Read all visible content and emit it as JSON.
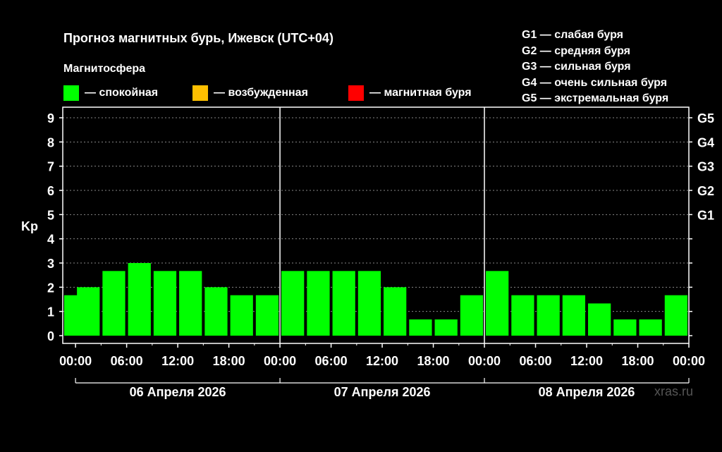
{
  "title": "Прогноз магнитных бурь, Ижевск (UTC+04)",
  "subtitle": "Магнитосфера",
  "legend": [
    {
      "label": "— спокойная",
      "color": "#00ff00"
    },
    {
      "label": "— возбужденная",
      "color": "#ffc000"
    },
    {
      "label": "— магнитная буря",
      "color": "#ff0000"
    }
  ],
  "g_legend": [
    "G1 — слабая буря",
    "G2 — средняя буря",
    "G3 — сильная буря",
    "G4 — очень сильная буря",
    "G5 — экстремальная буря"
  ],
  "watermark": "xras.ru",
  "chart_data": {
    "type": "bar",
    "title": "Прогноз магнитных бурь, Ижевск (UTC+04)",
    "ylabel": "Kp",
    "ylim": [
      0,
      9
    ],
    "yticks": [
      "0",
      "1",
      "2",
      "3",
      "4",
      "5",
      "6",
      "7",
      "8",
      "9"
    ],
    "right_ticks": [
      {
        "value": 5,
        "label": "G1"
      },
      {
        "value": 6,
        "label": "G2"
      },
      {
        "value": 7,
        "label": "G3"
      },
      {
        "value": 8,
        "label": "G4"
      },
      {
        "value": 9,
        "label": "G5"
      }
    ],
    "xlim_hours": [
      -1.5,
      72
    ],
    "xtick_labels": [
      "00:00",
      "06:00",
      "12:00",
      "18:00",
      "00:00",
      "06:00",
      "12:00",
      "18:00",
      "00:00",
      "06:00",
      "12:00",
      "18:00",
      "00:00"
    ],
    "days": [
      "06 Апреля 2026",
      "07 Апреля 2026",
      "08 Апреля 2026"
    ],
    "grid": true,
    "bar_color": "#00ff00",
    "bars": [
      {
        "hour": 0,
        "value": 1.67
      },
      {
        "hour": 1.5,
        "value": 2.0
      },
      {
        "hour": 4.5,
        "value": 2.67
      },
      {
        "hour": 7.5,
        "value": 3.0
      },
      {
        "hour": 10.5,
        "value": 2.67
      },
      {
        "hour": 13.5,
        "value": 2.67
      },
      {
        "hour": 16.5,
        "value": 2.0
      },
      {
        "hour": 19.5,
        "value": 1.67
      },
      {
        "hour": 22.5,
        "value": 1.67
      },
      {
        "hour": 25.5,
        "value": 2.67
      },
      {
        "hour": 28.5,
        "value": 2.67
      },
      {
        "hour": 31.5,
        "value": 2.67
      },
      {
        "hour": 34.5,
        "value": 2.67
      },
      {
        "hour": 37.5,
        "value": 2.0
      },
      {
        "hour": 40.5,
        "value": 0.67
      },
      {
        "hour": 43.5,
        "value": 0.67
      },
      {
        "hour": 46.5,
        "value": 1.67
      },
      {
        "hour": 49.5,
        "value": 2.67
      },
      {
        "hour": 52.5,
        "value": 1.67
      },
      {
        "hour": 55.5,
        "value": 1.67
      },
      {
        "hour": 58.5,
        "value": 1.67
      },
      {
        "hour": 61.5,
        "value": 1.33
      },
      {
        "hour": 64.5,
        "value": 0.67
      },
      {
        "hour": 67.5,
        "value": 0.67
      },
      {
        "hour": 70.5,
        "value": 1.67
      }
    ]
  }
}
